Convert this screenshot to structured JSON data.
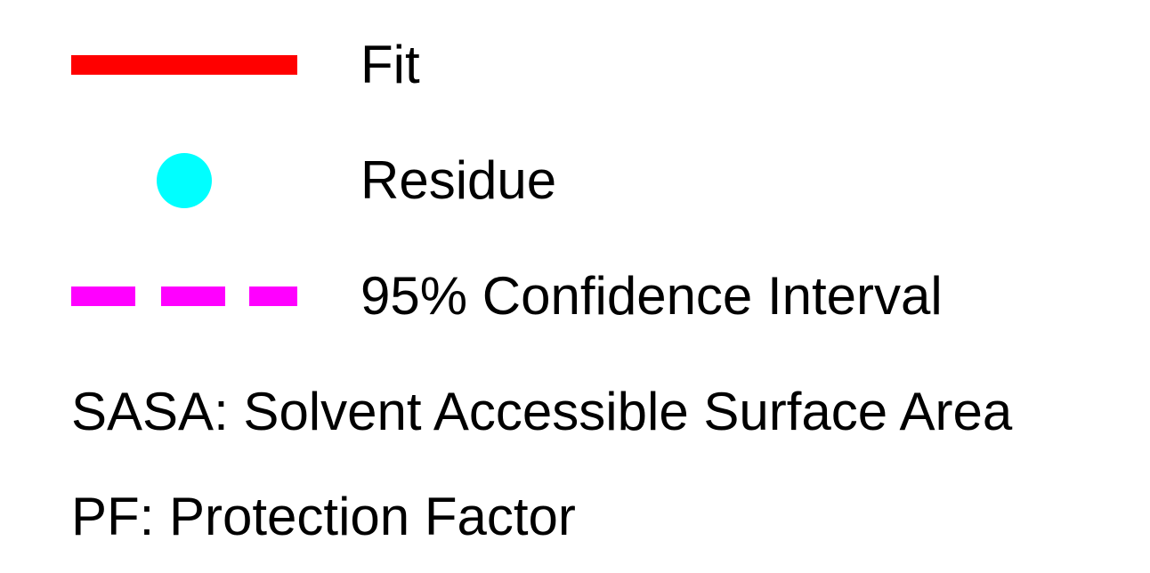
{
  "chart_data": {
    "type": "legend",
    "legend": [
      {
        "label": "Fit",
        "marker": "line",
        "color": "#ff0000",
        "style": "solid"
      },
      {
        "label": "Residue",
        "marker": "circle",
        "color": "#00ffff",
        "style": "point"
      },
      {
        "label": "95% Confidence Interval",
        "marker": "line",
        "color": "#ff00ff",
        "style": "dashed"
      }
    ],
    "notes": [
      "SASA: Solvent Accessible Surface Area",
      "PF: Protection Factor"
    ]
  }
}
